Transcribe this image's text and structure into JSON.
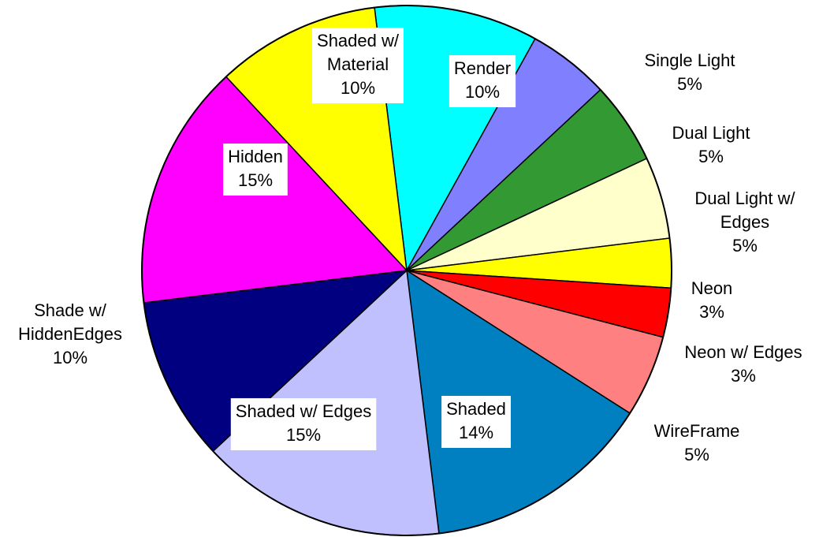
{
  "chart_data": {
    "type": "pie",
    "title": "",
    "slices": [
      {
        "name": "Render",
        "value": 10,
        "percent_label": "10%",
        "color": "#00FFFF"
      },
      {
        "name": "Single Light",
        "value": 5,
        "percent_label": "5%",
        "color": "#8080FF"
      },
      {
        "name": "Dual Light",
        "value": 5,
        "percent_label": "5%",
        "color": "#339933"
      },
      {
        "name": "Dual Light w/ Edges",
        "value": 5,
        "percent_label": "5%",
        "color": "#FFFFCC"
      },
      {
        "name": "Neon",
        "value": 3,
        "percent_label": "3%",
        "color": "#FFFF00"
      },
      {
        "name": "Neon w/ Edges",
        "value": 3,
        "percent_label": "3%",
        "color": "#FF0000"
      },
      {
        "name": "WireFrame",
        "value": 5,
        "percent_label": "5%",
        "color": "#FF8080"
      },
      {
        "name": "Shaded",
        "value": 14,
        "percent_label": "14%",
        "color": "#0080C0"
      },
      {
        "name": "Shaded w/ Edges",
        "value": 15,
        "percent_label": "15%",
        "color": "#C0C0FF"
      },
      {
        "name": "Shade w/ HiddenEdges",
        "value": 10,
        "percent_label": "10%",
        "color": "#000080"
      },
      {
        "name": "Hidden",
        "value": 15,
        "percent_label": "15%",
        "color": "#FF00FF"
      },
      {
        "name": "Shaded w/ Material",
        "value": 10,
        "percent_label": "10%",
        "color": "#FFFF00"
      }
    ]
  }
}
